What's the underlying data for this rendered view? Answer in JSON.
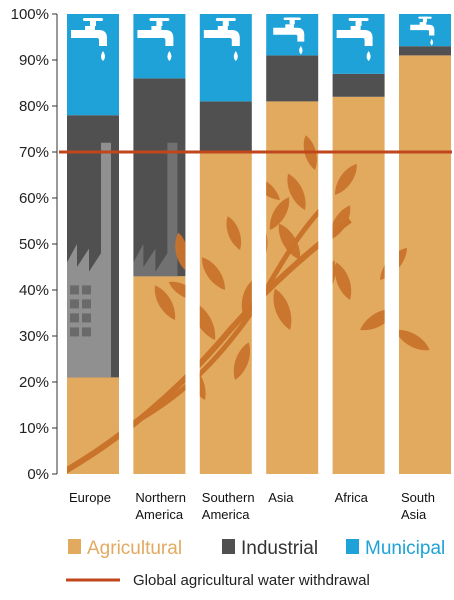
{
  "chart_data": {
    "type": "bar",
    "stacked": true,
    "categories": [
      [
        "Europe"
      ],
      [
        "Northern",
        "America"
      ],
      [
        "Southern",
        "America"
      ],
      [
        "Asia"
      ],
      [
        "Africa"
      ],
      [
        "South",
        "Asia"
      ]
    ],
    "y_ticks": [
      "0%",
      "10%",
      "20%",
      "30%",
      "40%",
      "50%",
      "60%",
      "70%",
      "80%",
      "90%",
      "100%"
    ],
    "ylim": [
      0,
      100
    ],
    "series": [
      {
        "name": "Agricultural",
        "color": "#e2aa5f",
        "values": [
          21,
          43,
          70,
          81,
          82,
          91
        ]
      },
      {
        "name": "Industrial",
        "color": "#505050",
        "values": [
          57,
          43,
          11,
          10,
          5,
          2
        ]
      },
      {
        "name": "Municipal",
        "color": "#1ea2d8",
        "values": [
          22,
          14,
          19,
          9,
          13,
          7
        ]
      }
    ],
    "reference_line": {
      "label": "Global agricultural water withdrawal",
      "value": 70,
      "color": "#c0461c"
    },
    "icons": [
      "water-tap-icon",
      "factory-icon",
      "wheat-icon"
    ]
  }
}
